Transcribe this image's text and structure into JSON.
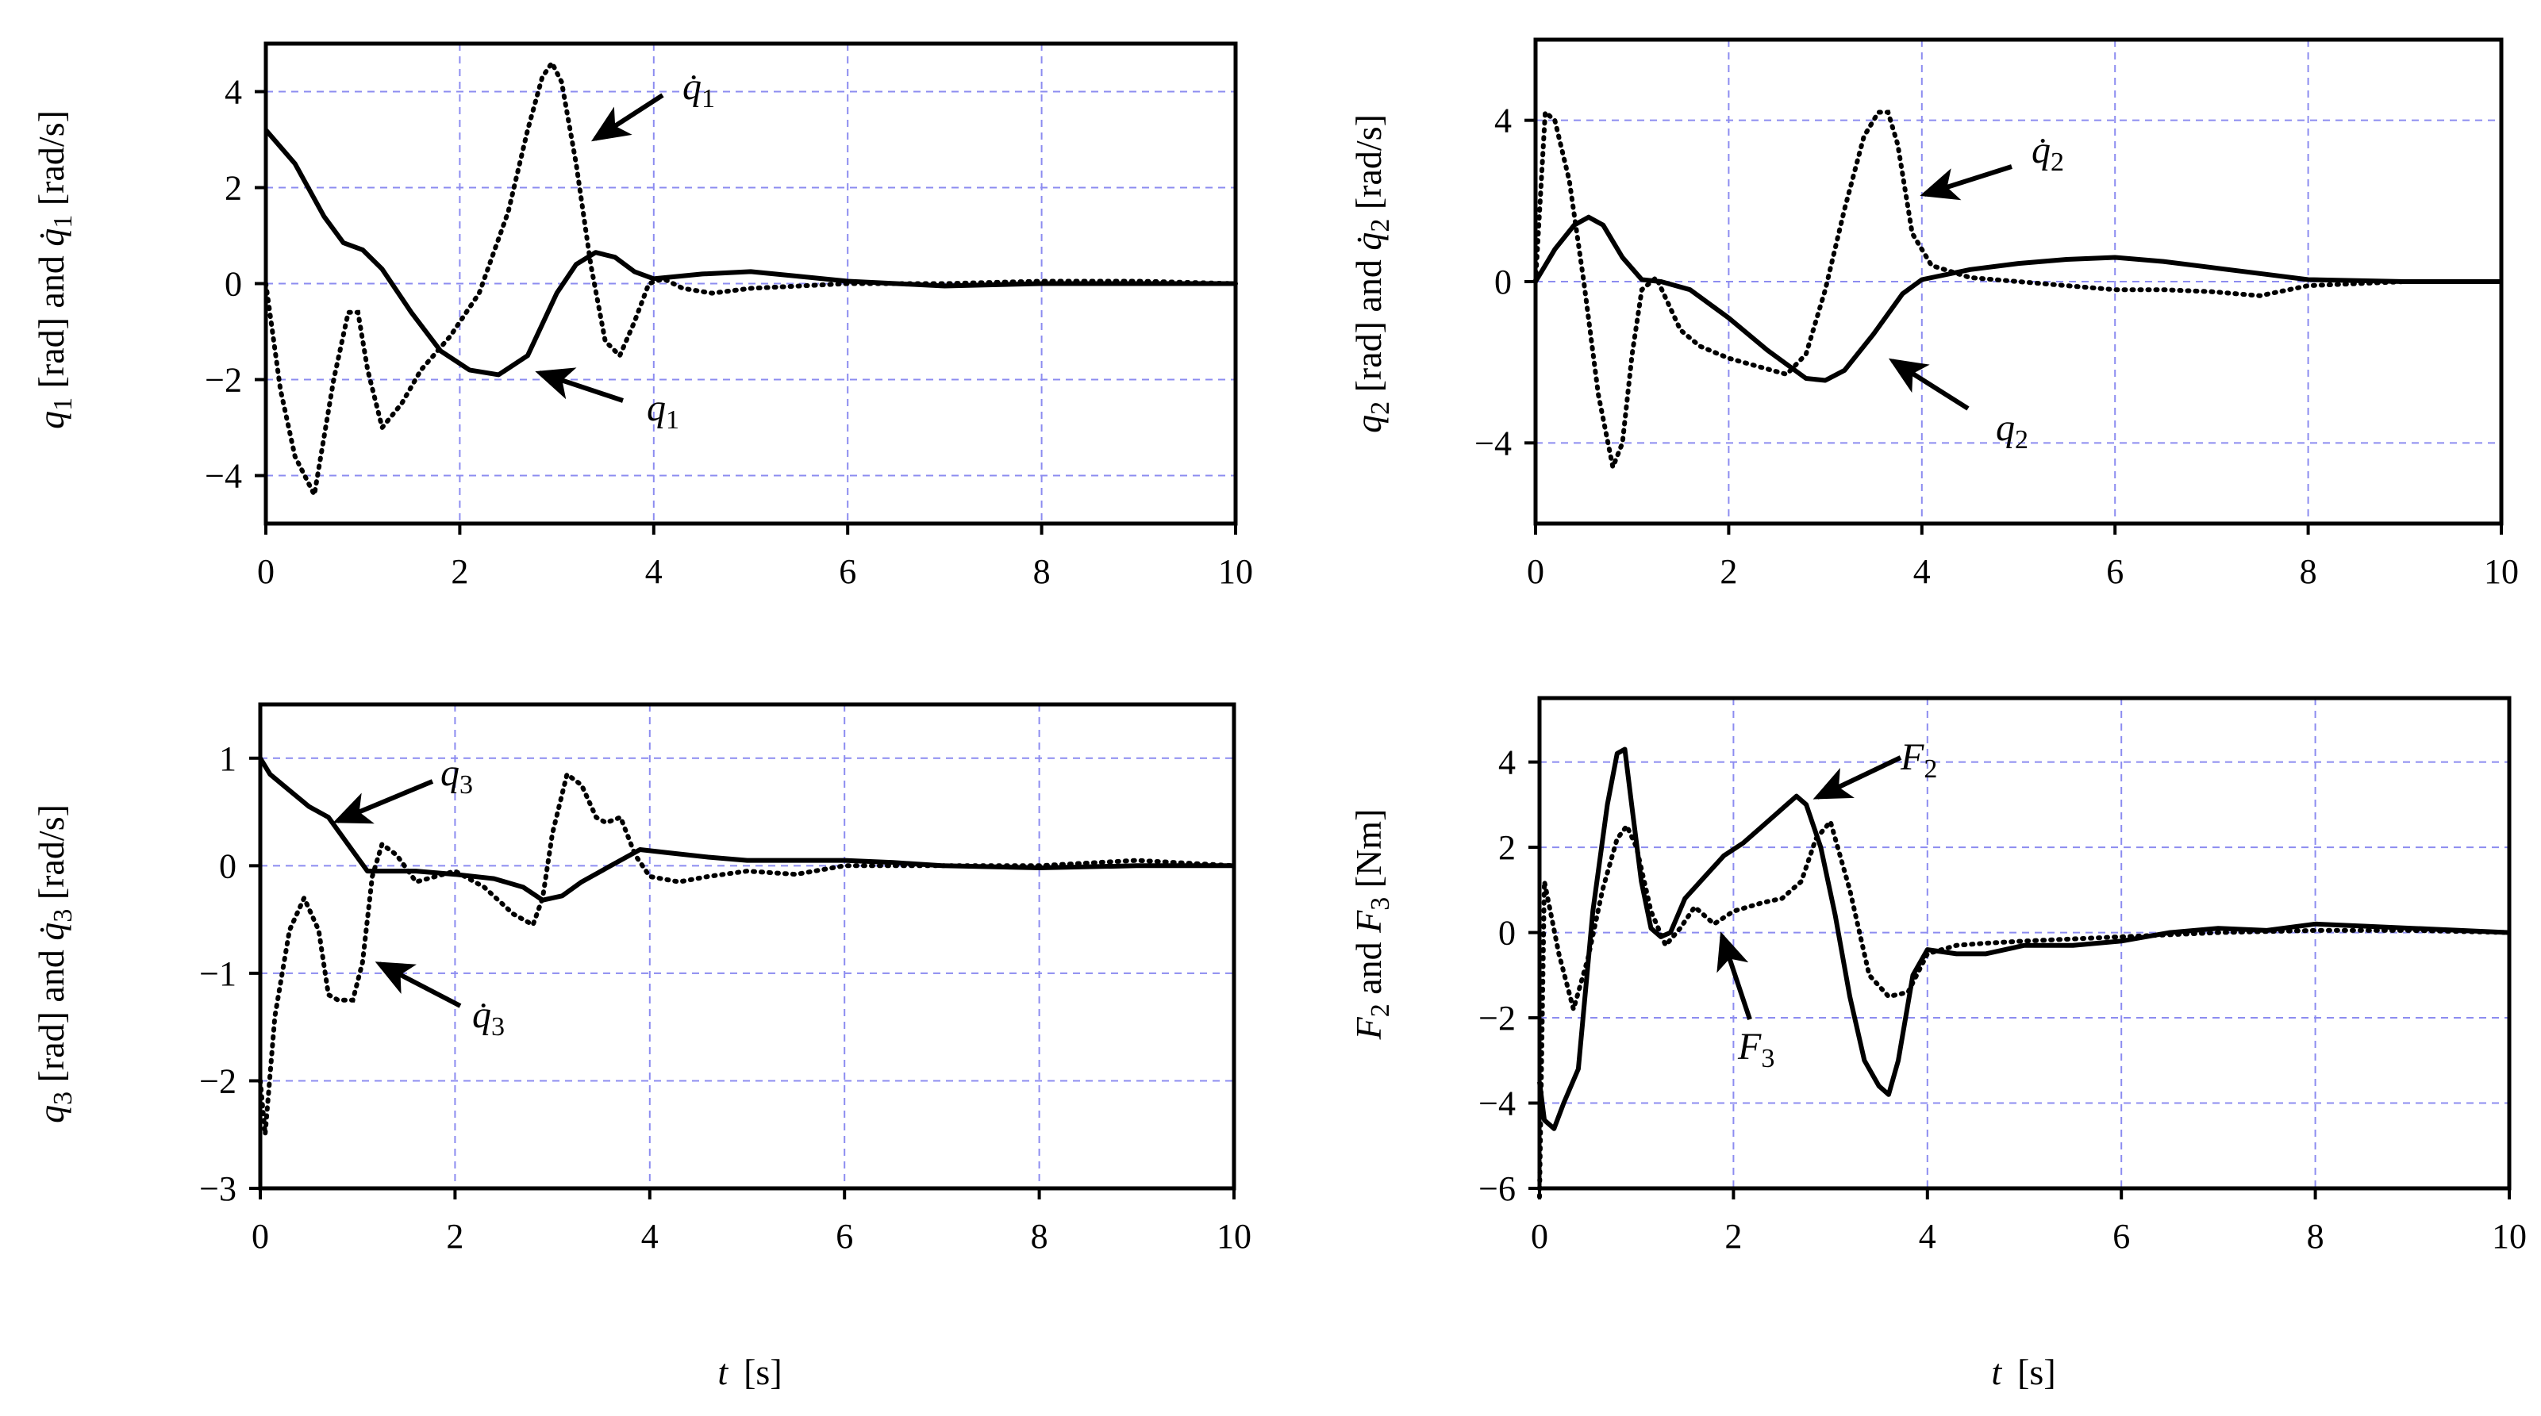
{
  "figure": {
    "xlabel": "t  [s]",
    "xlabel_var": "t",
    "xlabel_unit": "[s]"
  },
  "chart_data": [
    {
      "id": "q1",
      "type": "line",
      "ylabel": "q1 [rad] and q̇1 [rad/s]",
      "xlim": [
        0,
        10
      ],
      "ylim": [
        -5,
        5
      ],
      "xticks": [
        0,
        2,
        4,
        6,
        8,
        10
      ],
      "yticks": [
        -4,
        -2,
        0,
        2,
        4
      ],
      "grid": true,
      "series": [
        {
          "name": "q1",
          "style": "solid",
          "x": [
            0,
            0.3,
            0.6,
            0.8,
            1.0,
            1.2,
            1.5,
            1.8,
            2.1,
            2.4,
            2.7,
            3.0,
            3.2,
            3.4,
            3.6,
            3.8,
            4.0,
            4.5,
            5.0,
            5.5,
            6.0,
            6.5,
            7.0,
            8.0,
            9.0,
            10.0
          ],
          "y": [
            3.2,
            2.5,
            1.4,
            0.85,
            0.7,
            0.3,
            -0.6,
            -1.4,
            -1.8,
            -1.9,
            -1.5,
            -0.2,
            0.4,
            0.65,
            0.55,
            0.25,
            0.1,
            0.2,
            0.25,
            0.15,
            0.05,
            0.0,
            -0.05,
            0.0,
            0.0,
            0.0
          ]
        },
        {
          "name": "q̇1",
          "style": "dotted",
          "x": [
            0,
            0.15,
            0.3,
            0.5,
            0.7,
            0.85,
            0.95,
            1.05,
            1.2,
            1.4,
            1.6,
            1.9,
            2.2,
            2.5,
            2.7,
            2.85,
            2.95,
            3.05,
            3.2,
            3.35,
            3.5,
            3.65,
            3.8,
            3.95,
            4.1,
            4.3,
            4.6,
            5.0,
            5.5,
            6.0,
            6.5,
            7.0,
            8.0,
            9.0,
            10.0
          ],
          "y": [
            0,
            -2.2,
            -3.6,
            -4.4,
            -2.0,
            -0.6,
            -0.6,
            -1.8,
            -3.0,
            -2.5,
            -1.8,
            -1.1,
            -0.2,
            1.5,
            3.2,
            4.3,
            4.6,
            4.2,
            2.5,
            0.4,
            -1.2,
            -1.5,
            -0.8,
            0.0,
            0.1,
            -0.1,
            -0.2,
            -0.1,
            -0.05,
            0.0,
            0.0,
            0.0,
            0.05,
            0.05,
            0.0
          ]
        }
      ],
      "annotations": [
        {
          "label": "q̇",
          "subscript": "1",
          "target": "q̇1"
        },
        {
          "label": "q",
          "subscript": "1",
          "target": "q1"
        }
      ]
    },
    {
      "id": "q2",
      "type": "line",
      "ylabel": "q2 [rad]  and  q̇2 [rad/s]",
      "xlim": [
        0,
        10
      ],
      "ylim": [
        -6,
        6
      ],
      "xticks": [
        0,
        2,
        4,
        6,
        8,
        10
      ],
      "yticks": [
        -4,
        0,
        4
      ],
      "grid": true,
      "series": [
        {
          "name": "q2",
          "style": "solid",
          "x": [
            0,
            0.2,
            0.4,
            0.55,
            0.7,
            0.9,
            1.1,
            1.3,
            1.6,
            2.0,
            2.4,
            2.8,
            3.0,
            3.2,
            3.5,
            3.8,
            4.0,
            4.5,
            5.0,
            5.5,
            6.0,
            6.5,
            7.0,
            7.5,
            8.0,
            9.0,
            10.0
          ],
          "y": [
            0,
            0.8,
            1.4,
            1.6,
            1.4,
            0.6,
            0.05,
            0.0,
            -0.2,
            -0.9,
            -1.7,
            -2.4,
            -2.45,
            -2.2,
            -1.3,
            -0.3,
            0.05,
            0.3,
            0.45,
            0.55,
            0.6,
            0.5,
            0.35,
            0.2,
            0.05,
            0.0,
            0.0
          ]
        },
        {
          "name": "q̇2",
          "style": "dotted",
          "x": [
            0,
            0.1,
            0.2,
            0.35,
            0.5,
            0.65,
            0.8,
            0.9,
            1.0,
            1.1,
            1.25,
            1.5,
            1.7,
            2.0,
            2.3,
            2.6,
            2.8,
            3.0,
            3.2,
            3.4,
            3.55,
            3.65,
            3.75,
            3.9,
            4.1,
            4.5,
            5.0,
            5.5,
            6.0,
            6.5,
            7.0,
            7.5,
            8.0,
            9.0,
            10.0
          ],
          "y": [
            0,
            4.2,
            4.0,
            2.5,
            0.0,
            -2.8,
            -4.6,
            -4.0,
            -1.8,
            -0.2,
            0.1,
            -1.2,
            -1.6,
            -1.9,
            -2.1,
            -2.3,
            -1.8,
            -0.2,
            1.8,
            3.6,
            4.2,
            4.2,
            3.4,
            1.2,
            0.4,
            0.1,
            0.0,
            -0.1,
            -0.2,
            -0.2,
            -0.25,
            -0.35,
            -0.1,
            0.0,
            0.0
          ]
        }
      ],
      "annotations": [
        {
          "label": "q̇",
          "subscript": "2",
          "target": "q̇2"
        },
        {
          "label": "q",
          "subscript": "2",
          "target": "q2"
        }
      ]
    },
    {
      "id": "q3",
      "type": "line",
      "ylabel": "q3 [rad]  and  q̇3 [rad/s]",
      "xlim": [
        0,
        10
      ],
      "ylim": [
        -3,
        1.5
      ],
      "xticks": [
        0,
        2,
        4,
        6,
        8,
        10
      ],
      "yticks": [
        -3,
        -2,
        -1,
        0,
        1
      ],
      "grid": true,
      "series": [
        {
          "name": "q3",
          "style": "solid",
          "x": [
            0,
            0.1,
            0.3,
            0.5,
            0.7,
            0.9,
            1.1,
            1.3,
            1.6,
            2.0,
            2.4,
            2.7,
            2.9,
            3.1,
            3.3,
            3.6,
            3.9,
            4.2,
            4.6,
            5.0,
            5.5,
            6.0,
            6.5,
            7.0,
            8.0,
            9.0,
            10.0
          ],
          "y": [
            1.0,
            0.85,
            0.7,
            0.55,
            0.45,
            0.2,
            -0.05,
            -0.05,
            -0.05,
            -0.08,
            -0.12,
            -0.2,
            -0.32,
            -0.28,
            -0.15,
            0.0,
            0.15,
            0.12,
            0.08,
            0.05,
            0.05,
            0.05,
            0.03,
            0.0,
            -0.02,
            0.0,
            0.0
          ]
        },
        {
          "name": "q̇3",
          "style": "dotted",
          "x": [
            0,
            0.05,
            0.15,
            0.3,
            0.45,
            0.6,
            0.7,
            0.8,
            0.95,
            1.05,
            1.15,
            1.25,
            1.4,
            1.6,
            1.8,
            2.0,
            2.3,
            2.6,
            2.8,
            2.9,
            3.0,
            3.15,
            3.3,
            3.45,
            3.55,
            3.7,
            3.85,
            4.0,
            4.3,
            4.6,
            5.0,
            5.5,
            6.0,
            7.0,
            8.0,
            9.0,
            10.0
          ],
          "y": [
            -2.0,
            -2.5,
            -1.4,
            -0.6,
            -0.3,
            -0.6,
            -1.2,
            -1.25,
            -1.25,
            -0.9,
            -0.1,
            0.2,
            0.1,
            -0.15,
            -0.1,
            -0.05,
            -0.2,
            -0.45,
            -0.55,
            -0.3,
            0.3,
            0.85,
            0.75,
            0.45,
            0.4,
            0.45,
            0.1,
            -0.1,
            -0.15,
            -0.1,
            -0.05,
            -0.08,
            0.0,
            0.0,
            0.0,
            0.05,
            0.0
          ]
        }
      ],
      "annotations": [
        {
          "label": "q",
          "subscript": "3",
          "target": "q3"
        },
        {
          "label": "q̇",
          "subscript": "3",
          "target": "q̇3"
        }
      ]
    },
    {
      "id": "F",
      "type": "line",
      "ylabel": "F2  and  F3  [Nm]",
      "xlim": [
        0,
        10
      ],
      "ylim": [
        -6,
        5.5
      ],
      "xticks": [
        0,
        2,
        4,
        6,
        8,
        10
      ],
      "yticks": [
        -6,
        -4,
        -2,
        0,
        2,
        4
      ],
      "grid": true,
      "series": [
        {
          "name": "F2",
          "style": "solid",
          "x": [
            0,
            0.05,
            0.15,
            0.25,
            0.4,
            0.55,
            0.7,
            0.8,
            0.88,
            0.95,
            1.05,
            1.15,
            1.25,
            1.35,
            1.5,
            1.7,
            1.9,
            2.1,
            2.3,
            2.5,
            2.65,
            2.75,
            2.9,
            3.05,
            3.2,
            3.35,
            3.5,
            3.6,
            3.7,
            3.85,
            4.0,
            4.3,
            4.6,
            5.0,
            5.5,
            6.0,
            6.5,
            7.0,
            7.5,
            8.0,
            8.5,
            9.0,
            9.5,
            10.0
          ],
          "y": [
            -3.5,
            -4.4,
            -4.6,
            -4.0,
            -3.2,
            0.5,
            3.0,
            4.2,
            4.3,
            3.0,
            1.2,
            0.1,
            -0.1,
            0.0,
            0.8,
            1.3,
            1.8,
            2.1,
            2.5,
            2.9,
            3.2,
            3.0,
            2.0,
            0.4,
            -1.5,
            -3.0,
            -3.6,
            -3.8,
            -3.0,
            -1.0,
            -0.4,
            -0.5,
            -0.5,
            -0.3,
            -0.3,
            -0.2,
            0.0,
            0.1,
            0.05,
            0.2,
            0.15,
            0.1,
            0.05,
            0.0
          ]
        },
        {
          "name": "F3",
          "style": "dotted",
          "x": [
            0,
            0.05,
            0.2,
            0.35,
            0.5,
            0.65,
            0.8,
            0.9,
            1.0,
            1.15,
            1.3,
            1.45,
            1.6,
            1.8,
            2.0,
            2.3,
            2.5,
            2.7,
            2.85,
            3.0,
            3.2,
            3.4,
            3.6,
            3.8,
            4.0,
            4.3,
            4.6,
            5.0,
            5.5,
            6.0,
            6.5,
            7.0,
            8.0,
            9.0,
            10.0
          ],
          "y": [
            -6.2,
            1.2,
            -0.5,
            -1.8,
            -0.6,
            1.0,
            2.2,
            2.5,
            2.0,
            0.5,
            -0.3,
            0.1,
            0.6,
            0.2,
            0.5,
            0.7,
            0.8,
            1.2,
            2.2,
            2.6,
            1.0,
            -1.0,
            -1.5,
            -1.4,
            -0.5,
            -0.3,
            -0.25,
            -0.2,
            -0.15,
            -0.1,
            -0.05,
            0.0,
            0.05,
            0.05,
            0.0
          ]
        }
      ],
      "annotations": [
        {
          "label": "F",
          "subscript": "2",
          "target": "F2"
        },
        {
          "label": "F",
          "subscript": "3",
          "target": "F3"
        }
      ]
    }
  ]
}
